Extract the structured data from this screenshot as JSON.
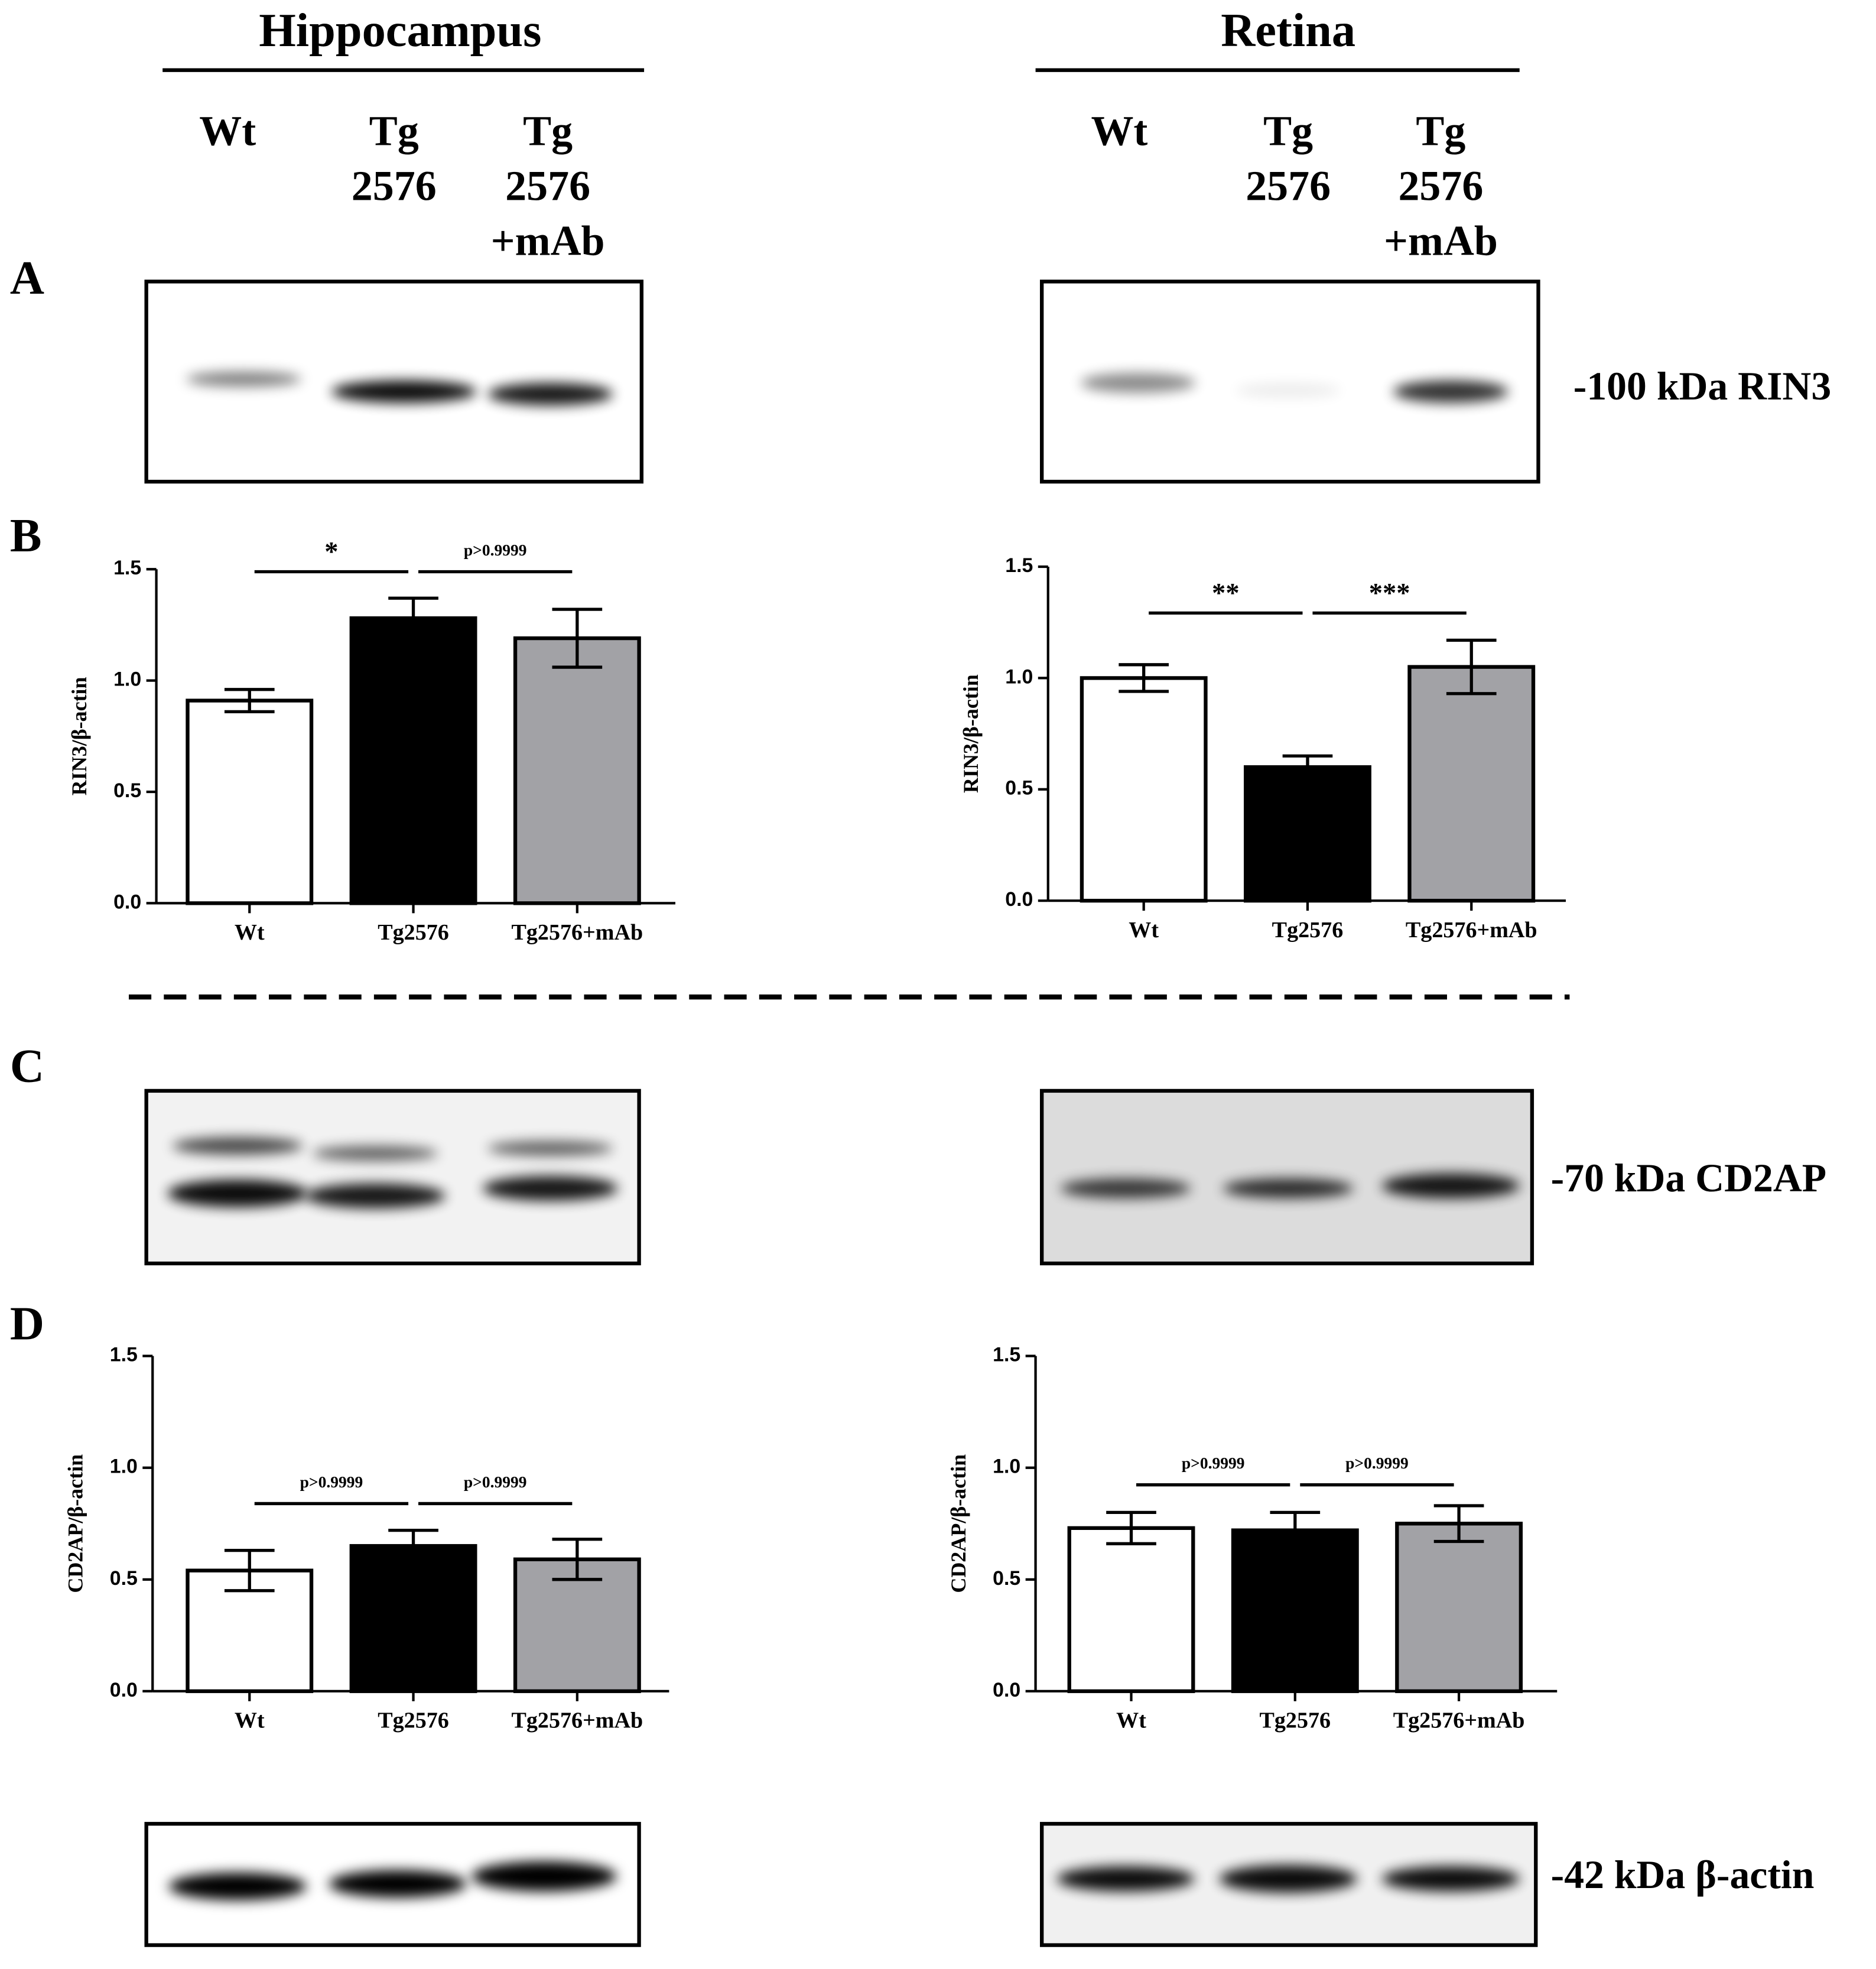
{
  "figure": {
    "columns": [
      {
        "title": "Hippocampus",
        "lanes": [
          [
            "Wt"
          ],
          [
            "Tg",
            "2576"
          ],
          [
            "Tg",
            "2576",
            "+mAb"
          ]
        ]
      },
      {
        "title": "Retina",
        "lanes": [
          [
            "Wt"
          ],
          [
            "Tg",
            "2576"
          ],
          [
            "Tg",
            "2576",
            "+mAb"
          ]
        ]
      }
    ],
    "panels": [
      "A",
      "B",
      "C",
      "D"
    ],
    "blot_labels": [
      "-100 kDa RIN3",
      "-70 kDa CD2AP",
      "-42 kDa β-actin"
    ]
  },
  "chart_data": [
    {
      "type": "bar",
      "ylabel": "RIN3/β-actin",
      "categories": [
        "Wt",
        "Tg2576",
        "Tg2576+mAb"
      ],
      "values": [
        0.91,
        1.28,
        1.19
      ],
      "errors": [
        0.05,
        0.09,
        0.13
      ],
      "colors": [
        "#ffffff",
        "#000000",
        "#a2a2a6"
      ],
      "ylim": [
        0,
        1.5
      ],
      "yticks": [
        {
          "value": 0,
          "label": "0.0"
        },
        0.5,
        {
          "value": 1,
          "label": "1.0"
        },
        1.5
      ],
      "annotations": [
        "*",
        "p>0.9999"
      ]
    },
    {
      "type": "bar",
      "ylabel": "RIN3/β-actin",
      "categories": [
        "Wt",
        "Tg2576",
        "Tg2576+mAb"
      ],
      "values": [
        1.0,
        0.6,
        1.05
      ],
      "errors": [
        0.06,
        0.05,
        0.12
      ],
      "colors": [
        "#ffffff",
        "#000000",
        "#a2a2a6"
      ],
      "ylim": [
        0,
        1.5
      ],
      "yticks": [
        {
          "value": 0,
          "label": "0.0"
        },
        0.5,
        {
          "value": 1,
          "label": "1.0"
        },
        1.5
      ],
      "annotations": [
        "**",
        "***"
      ]
    },
    {
      "type": "bar",
      "ylabel": "CD2AP/β-actin",
      "categories": [
        "Wt",
        "Tg2576",
        "Tg2576+mAb"
      ],
      "values": [
        0.54,
        0.65,
        0.59
      ],
      "errors": [
        0.09,
        0.07,
        0.09
      ],
      "colors": [
        "#ffffff",
        "#000000",
        "#a2a2a6"
      ],
      "ylim": [
        0,
        1.5
      ],
      "yticks": [
        {
          "value": 0,
          "label": "0.0"
        },
        0.5,
        {
          "value": 1,
          "label": "1.0"
        },
        1.5
      ],
      "annotations": [
        "p>0.9999",
        "p>0.9999"
      ]
    },
    {
      "type": "bar",
      "ylabel": "CD2AP/β-actin",
      "categories": [
        "Wt",
        "Tg2576",
        "Tg2576+mAb"
      ],
      "values": [
        0.73,
        0.72,
        0.75
      ],
      "errors": [
        0.07,
        0.08,
        0.08
      ],
      "colors": [
        "#ffffff",
        "#000000",
        "#a2a2a6"
      ],
      "ylim": [
        0,
        1.5
      ],
      "yticks": [
        {
          "value": 0,
          "label": "0.0"
        },
        0.5,
        {
          "value": 1,
          "label": "1.0"
        },
        1.5
      ],
      "annotations": [
        "p>0.9999",
        "p>0.9999"
      ]
    }
  ]
}
